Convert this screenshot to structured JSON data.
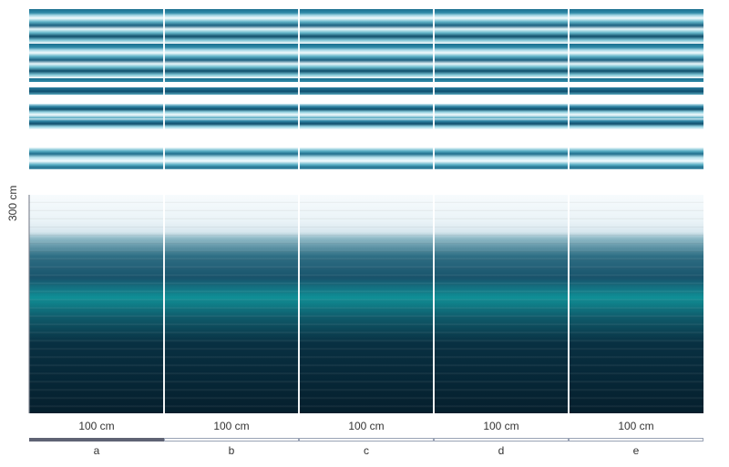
{
  "dimensions": {
    "height_label": "300 cm",
    "panel_width_label": "100 cm"
  },
  "panels": [
    {
      "letter": "a",
      "width_label": "100 cm",
      "selected": true
    },
    {
      "letter": "b",
      "width_label": "100 cm",
      "selected": false
    },
    {
      "letter": "c",
      "width_label": "100 cm",
      "selected": false
    },
    {
      "letter": "d",
      "width_label": "100 cm",
      "selected": false
    },
    {
      "letter": "e",
      "width_label": "100 cm",
      "selected": false
    }
  ],
  "colors": {
    "selected_bar": "#5f6374",
    "unselected_bar_border": "#9aa3b5",
    "separator": "#ffffff"
  }
}
